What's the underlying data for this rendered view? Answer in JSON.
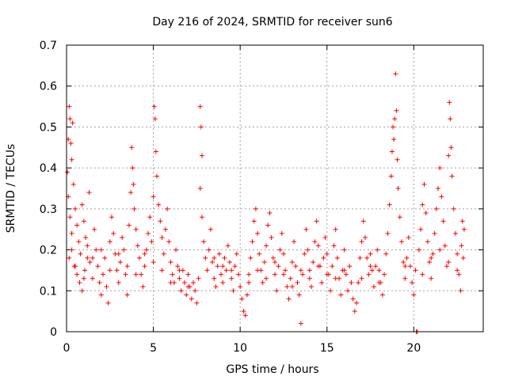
{
  "chart_data": {
    "type": "scatter",
    "title": "Day 216 of 2024, SRMTID for receiver sun6",
    "xlabel": "GPS time / hours",
    "ylabel": "SRMTID / TECUs",
    "xlim": [
      0,
      24
    ],
    "ylim": [
      0,
      0.7
    ],
    "x_ticks": [
      0,
      5,
      10,
      15,
      20
    ],
    "x_tick_labels": [
      "0",
      "5",
      "10",
      "15",
      "20"
    ],
    "y_ticks": [
      0,
      0.1,
      0.2,
      0.3,
      0.4,
      0.5,
      0.6,
      0.7
    ],
    "y_tick_labels": [
      "0",
      "0.1",
      "0.2",
      "0.3",
      "0.4",
      "0.5",
      "0.6",
      "0.7"
    ],
    "grid": true,
    "marker": "+",
    "color": "#ff0000",
    "series": [
      {
        "name": "sun6",
        "points": [
          [
            0.05,
            0.39
          ],
          [
            0.1,
            0.47
          ],
          [
            0.15,
            0.55
          ],
          [
            0.2,
            0.52
          ],
          [
            0.25,
            0.46
          ],
          [
            0.3,
            0.42
          ],
          [
            0.35,
            0.51
          ],
          [
            0.1,
            0.33
          ],
          [
            0.2,
            0.28
          ],
          [
            0.3,
            0.24
          ],
          [
            0.4,
            0.36
          ],
          [
            0.5,
            0.3
          ],
          [
            0.6,
            0.26
          ],
          [
            0.7,
            0.22
          ],
          [
            0.8,
            0.19
          ],
          [
            0.9,
            0.31
          ],
          [
            1.0,
            0.27
          ],
          [
            1.1,
            0.23
          ],
          [
            1.2,
            0.18
          ],
          [
            1.3,
            0.34
          ],
          [
            0.15,
            0.18
          ],
          [
            0.3,
            0.2
          ],
          [
            0.45,
            0.16
          ],
          [
            0.6,
            0.14
          ],
          [
            0.75,
            0.12
          ],
          [
            0.9,
            0.1
          ],
          [
            1.05,
            0.15
          ],
          [
            1.2,
            0.21
          ],
          [
            1.35,
            0.17
          ],
          [
            1.5,
            0.13
          ],
          [
            1.6,
            0.25
          ],
          [
            1.7,
            0.2
          ],
          [
            1.8,
            0.16
          ],
          [
            1.9,
            0.12
          ],
          [
            2.0,
            0.09
          ],
          [
            2.1,
            0.14
          ],
          [
            2.2,
            0.18
          ],
          [
            2.3,
            0.11
          ],
          [
            2.4,
            0.07
          ],
          [
            2.5,
            0.22
          ],
          [
            2.6,
            0.28
          ],
          [
            2.7,
            0.24
          ],
          [
            2.8,
            0.19
          ],
          [
            2.9,
            0.15
          ],
          [
            3.0,
            0.12
          ],
          [
            3.1,
            0.17
          ],
          [
            3.2,
            0.23
          ],
          [
            3.3,
            0.2
          ],
          [
            3.4,
            0.14
          ],
          [
            3.5,
            0.09
          ],
          [
            3.6,
            0.26
          ],
          [
            3.7,
            0.34
          ],
          [
            3.75,
            0.45
          ],
          [
            3.8,
            0.4
          ],
          [
            3.85,
            0.36
          ],
          [
            3.9,
            0.3
          ],
          [
            4.0,
            0.25
          ],
          [
            4.1,
            0.21
          ],
          [
            4.2,
            0.18
          ],
          [
            4.3,
            0.14
          ],
          [
            4.4,
            0.11
          ],
          [
            4.5,
            0.16
          ],
          [
            4.6,
            0.2
          ],
          [
            4.7,
            0.24
          ],
          [
            4.8,
            0.28
          ],
          [
            4.9,
            0.22
          ],
          [
            5.0,
            0.33
          ],
          [
            5.05,
            0.55
          ],
          [
            5.1,
            0.52
          ],
          [
            5.15,
            0.44
          ],
          [
            5.2,
            0.38
          ],
          [
            5.3,
            0.31
          ],
          [
            5.4,
            0.27
          ],
          [
            5.5,
            0.23
          ],
          [
            5.6,
            0.19
          ],
          [
            5.7,
            0.25
          ],
          [
            5.8,
            0.3
          ],
          [
            5.9,
            0.22
          ],
          [
            6.0,
            0.17
          ],
          [
            6.1,
            0.14
          ],
          [
            6.2,
            0.12
          ],
          [
            6.3,
            0.2
          ],
          [
            6.4,
            0.16
          ],
          [
            6.5,
            0.13
          ],
          [
            6.6,
            0.1
          ],
          [
            6.7,
            0.15
          ],
          [
            6.8,
            0.12
          ],
          [
            6.9,
            0.09
          ],
          [
            7.0,
            0.14
          ],
          [
            7.1,
            0.11
          ],
          [
            7.2,
            0.08
          ],
          [
            7.3,
            0.12
          ],
          [
            7.4,
            0.1
          ],
          [
            7.5,
            0.07
          ],
          [
            7.6,
            0.13
          ],
          [
            7.7,
            0.55
          ],
          [
            7.75,
            0.5
          ],
          [
            7.8,
            0.43
          ],
          [
            7.7,
            0.35
          ],
          [
            7.8,
            0.28
          ],
          [
            7.9,
            0.22
          ],
          [
            8.0,
            0.18
          ],
          [
            8.1,
            0.15
          ],
          [
            8.2,
            0.2
          ],
          [
            8.3,
            0.25
          ],
          [
            8.4,
            0.17
          ],
          [
            8.5,
            0.13
          ],
          [
            8.6,
            0.11
          ],
          [
            8.7,
            0.16
          ],
          [
            8.8,
            0.19
          ],
          [
            8.9,
            0.14
          ],
          [
            9.0,
            0.12
          ],
          [
            9.1,
            0.18
          ],
          [
            9.2,
            0.15
          ],
          [
            9.3,
            0.21
          ],
          [
            9.4,
            0.17
          ],
          [
            9.5,
            0.13
          ],
          [
            9.6,
            0.1
          ],
          [
            9.7,
            0.16
          ],
          [
            9.8,
            0.19
          ],
          [
            9.9,
            0.14
          ],
          [
            10.0,
            0.11
          ],
          [
            10.1,
            0.08
          ],
          [
            10.2,
            0.05
          ],
          [
            10.3,
            0.04
          ],
          [
            10.4,
            0.09
          ],
          [
            10.5,
            0.14
          ],
          [
            10.6,
            0.18
          ],
          [
            10.7,
            0.22
          ],
          [
            10.8,
            0.27
          ],
          [
            10.9,
            0.3
          ],
          [
            11.0,
            0.24
          ],
          [
            11.1,
            0.19
          ],
          [
            11.2,
            0.15
          ],
          [
            11.3,
            0.12
          ],
          [
            11.4,
            0.17
          ],
          [
            11.5,
            0.21
          ],
          [
            11.6,
            0.26
          ],
          [
            11.7,
            0.29
          ],
          [
            11.8,
            0.23
          ],
          [
            11.9,
            0.18
          ],
          [
            12.0,
            0.14
          ],
          [
            12.1,
            0.1
          ],
          [
            12.2,
            0.16
          ],
          [
            12.3,
            0.2
          ],
          [
            12.4,
            0.24
          ],
          [
            12.5,
            0.19
          ],
          [
            12.6,
            0.15
          ],
          [
            12.7,
            0.11
          ],
          [
            12.8,
            0.08
          ],
          [
            12.9,
            0.13
          ],
          [
            13.0,
            0.17
          ],
          [
            13.1,
            0.22
          ],
          [
            13.2,
            0.16
          ],
          [
            13.3,
            0.12
          ],
          [
            13.4,
            0.09
          ],
          [
            13.5,
            0.02
          ],
          [
            13.6,
            0.14
          ],
          [
            13.7,
            0.19
          ],
          [
            13.8,
            0.25
          ],
          [
            13.9,
            0.2
          ],
          [
            14.0,
            0.15
          ],
          [
            14.1,
            0.11
          ],
          [
            14.2,
            0.17
          ],
          [
            14.3,
            0.22
          ],
          [
            14.4,
            0.27
          ],
          [
            14.5,
            0.21
          ],
          [
            14.6,
            0.16
          ],
          [
            14.7,
            0.12
          ],
          [
            14.8,
            0.18
          ],
          [
            14.9,
            0.23
          ],
          [
            15.0,
            0.19
          ],
          [
            15.1,
            0.14
          ],
          [
            15.2,
            0.1
          ],
          [
            15.3,
            0.16
          ],
          [
            15.4,
            0.21
          ],
          [
            15.5,
            0.25
          ],
          [
            15.6,
            0.18
          ],
          [
            15.7,
            0.13
          ],
          [
            15.8,
            0.09
          ],
          [
            15.9,
            0.15
          ],
          [
            16.0,
            0.2
          ],
          [
            16.1,
            0.14
          ],
          [
            16.2,
            0.1
          ],
          [
            16.3,
            0.16
          ],
          [
            16.4,
            0.12
          ],
          [
            16.5,
            0.08
          ],
          [
            16.6,
            0.05
          ],
          [
            16.7,
            0.07
          ],
          [
            16.8,
            0.12
          ],
          [
            16.9,
            0.18
          ],
          [
            17.0,
            0.22
          ],
          [
            17.1,
            0.27
          ],
          [
            17.2,
            0.23
          ],
          [
            17.3,
            0.18
          ],
          [
            17.4,
            0.14
          ],
          [
            17.5,
            0.19
          ],
          [
            17.6,
            0.15
          ],
          [
            17.7,
            0.11
          ],
          [
            17.8,
            0.16
          ],
          [
            17.9,
            0.2
          ],
          [
            18.0,
            0.15
          ],
          [
            18.1,
            0.12
          ],
          [
            18.2,
            0.09
          ],
          [
            18.3,
            0.14
          ],
          [
            18.4,
            0.19
          ],
          [
            18.5,
            0.24
          ],
          [
            18.6,
            0.31
          ],
          [
            18.7,
            0.38
          ],
          [
            18.75,
            0.44
          ],
          [
            18.8,
            0.5
          ],
          [
            18.85,
            0.47
          ],
          [
            18.9,
            0.52
          ],
          [
            18.95,
            0.63
          ],
          [
            19.0,
            0.54
          ],
          [
            19.05,
            0.42
          ],
          [
            19.1,
            0.35
          ],
          [
            19.2,
            0.28
          ],
          [
            19.3,
            0.22
          ],
          [
            19.4,
            0.17
          ],
          [
            19.5,
            0.13
          ],
          [
            19.6,
            0.18
          ],
          [
            19.7,
            0.23
          ],
          [
            19.8,
            0.16
          ],
          [
            19.9,
            0.12
          ],
          [
            20.0,
            0.09
          ],
          [
            20.1,
            0.15
          ],
          [
            20.15,
            0.0
          ],
          [
            20.2,
            0.0
          ],
          [
            20.3,
            0.2
          ],
          [
            20.4,
            0.25
          ],
          [
            20.5,
            0.31
          ],
          [
            20.6,
            0.36
          ],
          [
            20.7,
            0.29
          ],
          [
            20.8,
            0.22
          ],
          [
            20.9,
            0.17
          ],
          [
            21.0,
            0.13
          ],
          [
            21.1,
            0.19
          ],
          [
            21.2,
            0.24
          ],
          [
            21.3,
            0.3
          ],
          [
            21.4,
            0.35
          ],
          [
            21.5,
            0.4
          ],
          [
            21.6,
            0.33
          ],
          [
            21.7,
            0.27
          ],
          [
            21.8,
            0.21
          ],
          [
            21.9,
            0.16
          ],
          [
            22.0,
            0.43
          ],
          [
            22.05,
            0.56
          ],
          [
            22.1,
            0.52
          ],
          [
            22.15,
            0.45
          ],
          [
            22.2,
            0.38
          ],
          [
            22.3,
            0.3
          ],
          [
            22.4,
            0.24
          ],
          [
            22.5,
            0.19
          ],
          [
            22.6,
            0.14
          ],
          [
            22.7,
            0.1
          ],
          [
            22.75,
            0.21
          ],
          [
            22.8,
            0.27
          ],
          [
            22.85,
            0.18
          ],
          [
            22.9,
            0.25
          ],
          [
            0.5,
            0.16
          ],
          [
            1.0,
            0.13
          ],
          [
            1.5,
            0.18
          ],
          [
            2.0,
            0.2
          ],
          [
            2.5,
            0.15
          ],
          [
            3.0,
            0.19
          ],
          [
            3.5,
            0.16
          ],
          [
            4.0,
            0.14
          ],
          [
            4.5,
            0.19
          ],
          [
            5.0,
            0.17
          ],
          [
            5.5,
            0.15
          ],
          [
            6.0,
            0.12
          ],
          [
            6.5,
            0.15
          ],
          [
            7.0,
            0.11
          ],
          [
            8.5,
            0.18
          ],
          [
            9.0,
            0.16
          ],
          [
            9.5,
            0.15
          ],
          [
            10.5,
            0.12
          ],
          [
            11.0,
            0.15
          ],
          [
            11.5,
            0.13
          ],
          [
            12.0,
            0.17
          ],
          [
            12.5,
            0.14
          ],
          [
            13.0,
            0.11
          ],
          [
            13.5,
            0.15
          ],
          [
            14.0,
            0.13
          ],
          [
            14.5,
            0.16
          ],
          [
            15.0,
            0.14
          ],
          [
            15.5,
            0.13
          ],
          [
            16.0,
            0.15
          ],
          [
            17.0,
            0.13
          ],
          [
            17.5,
            0.16
          ],
          [
            18.0,
            0.12
          ],
          [
            19.5,
            0.16
          ],
          [
            20.5,
            0.14
          ],
          [
            21.0,
            0.18
          ],
          [
            21.5,
            0.2
          ],
          [
            22.0,
            0.17
          ],
          [
            22.5,
            0.15
          ]
        ]
      }
    ]
  }
}
